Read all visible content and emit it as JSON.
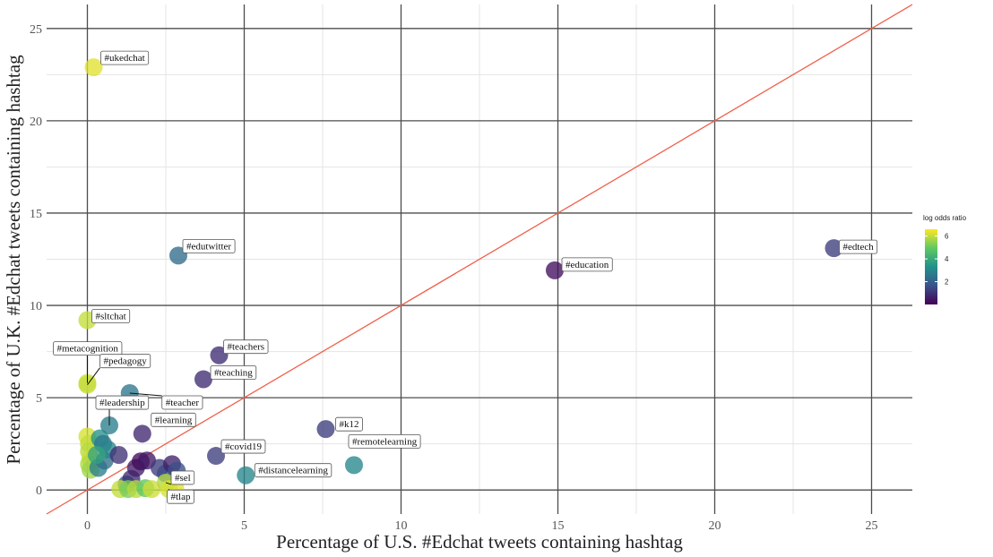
{
  "chart_data": {
    "type": "scatter",
    "title": "",
    "xlabel": "Percentage of U.S. #Edchat tweets containing hashtag",
    "ylabel": "Percentage of U.K. #Edchat tweets containing hashtag",
    "xlim": [
      -1.3,
      26.3
    ],
    "ylim": [
      -1.3,
      26.3
    ],
    "x_ticks": [
      0,
      5,
      10,
      15,
      20,
      25
    ],
    "y_ticks": [
      0,
      5,
      10,
      15,
      20,
      25
    ],
    "grid": true,
    "reference_line": {
      "slope": 1,
      "intercept": 0,
      "color": "#f0604a"
    },
    "color_scale": {
      "title": "log odds ratio",
      "ticks": [
        2,
        4,
        6
      ],
      "min": 0,
      "max": 6.6,
      "placement": "right",
      "colors": [
        "#440154",
        "#3b528b",
        "#21918c",
        "#5ec962",
        "#fde725"
      ]
    },
    "labeled_points": [
      {
        "label": "#ukedchat",
        "x": 0.2,
        "y": 22.9,
        "log_odds": 6.3
      },
      {
        "label": "#edutwitter",
        "x": 2.9,
        "y": 12.7,
        "log_odds": 2.3
      },
      {
        "label": "#sltchat",
        "x": 0.0,
        "y": 9.2,
        "log_odds": 6.0
      },
      {
        "label": "#metacognition",
        "x": 0.0,
        "y": 5.8,
        "log_odds": 6.1
      },
      {
        "label": "#pedagogy",
        "x": 0.0,
        "y": 5.7,
        "log_odds": 6.0
      },
      {
        "label": "#teacher",
        "x": 1.35,
        "y": 5.25,
        "log_odds": 2.6
      },
      {
        "label": "#teachers",
        "x": 4.2,
        "y": 7.3,
        "log_odds": 0.9
      },
      {
        "label": "#teaching",
        "x": 3.7,
        "y": 6.0,
        "log_odds": 0.9
      },
      {
        "label": "#education",
        "x": 14.9,
        "y": 11.9,
        "log_odds": 0.3
      },
      {
        "label": "#edtech",
        "x": 23.8,
        "y": 13.1,
        "log_odds": 1.2
      },
      {
        "label": "#leadership",
        "x": 0.7,
        "y": 3.5,
        "log_odds": 2.8
      },
      {
        "label": "#learning",
        "x": 1.75,
        "y": 3.05,
        "log_odds": 0.8
      },
      {
        "label": "#covid19",
        "x": 4.1,
        "y": 1.85,
        "log_odds": 1.2
      },
      {
        "label": "#k12",
        "x": 7.6,
        "y": 3.3,
        "log_odds": 1.2
      },
      {
        "label": "#remotelearning",
        "x": 8.5,
        "y": 1.35,
        "log_odds": 3.0
      },
      {
        "label": "#distancelearning",
        "x": 5.05,
        "y": 0.8,
        "log_odds": 3.0
      },
      {
        "label": "#sel",
        "x": 2.5,
        "y": 0.4,
        "log_odds": 5.8
      },
      {
        "label": "#tlap",
        "x": 2.6,
        "y": 0.05,
        "log_odds": 6.2
      }
    ],
    "unlabeled_points": [
      {
        "x": 0.0,
        "y": 2.9,
        "log_odds": 6.2
      },
      {
        "x": 0.05,
        "y": 2.5,
        "log_odds": 6.0
      },
      {
        "x": 0.05,
        "y": 2.1,
        "log_odds": 5.9
      },
      {
        "x": 0.1,
        "y": 1.7,
        "log_odds": 6.1
      },
      {
        "x": 0.05,
        "y": 1.4,
        "log_odds": 5.8
      },
      {
        "x": 0.1,
        "y": 1.1,
        "log_odds": 5.6
      },
      {
        "x": 0.35,
        "y": 1.2,
        "log_odds": 2.8
      },
      {
        "x": 0.4,
        "y": 2.8,
        "log_odds": 3.4
      },
      {
        "x": 0.5,
        "y": 2.5,
        "log_odds": 2.6
      },
      {
        "x": 0.55,
        "y": 1.6,
        "log_odds": 2.4
      },
      {
        "x": 0.65,
        "y": 2.2,
        "log_odds": 3.0
      },
      {
        "x": 0.3,
        "y": 1.9,
        "log_odds": 3.8
      },
      {
        "x": 1.0,
        "y": 1.9,
        "log_odds": 1.0
      },
      {
        "x": 1.25,
        "y": 0.3,
        "log_odds": 2.0
      },
      {
        "x": 1.4,
        "y": 0.6,
        "log_odds": 0.9
      },
      {
        "x": 1.55,
        "y": 1.2,
        "log_odds": 0.6
      },
      {
        "x": 1.7,
        "y": 1.55,
        "log_odds": 0.2
      },
      {
        "x": 1.9,
        "y": 1.6,
        "log_odds": 0.5
      },
      {
        "x": 2.3,
        "y": 1.2,
        "log_odds": 1.2
      },
      {
        "x": 2.5,
        "y": 0.9,
        "log_odds": 1.5
      },
      {
        "x": 2.7,
        "y": 1.4,
        "log_odds": 0.7
      },
      {
        "x": 2.85,
        "y": 1.05,
        "log_odds": 1.6
      },
      {
        "x": 1.05,
        "y": 0.05,
        "log_odds": 6.0
      },
      {
        "x": 1.3,
        "y": 0.05,
        "log_odds": 5.2
      },
      {
        "x": 1.55,
        "y": 0.05,
        "log_odds": 5.9
      },
      {
        "x": 1.85,
        "y": 0.1,
        "log_odds": 4.9
      },
      {
        "x": 2.05,
        "y": 0.05,
        "log_odds": 6.1
      },
      {
        "x": 2.8,
        "y": 0.1,
        "log_odds": 6.3
      }
    ]
  }
}
